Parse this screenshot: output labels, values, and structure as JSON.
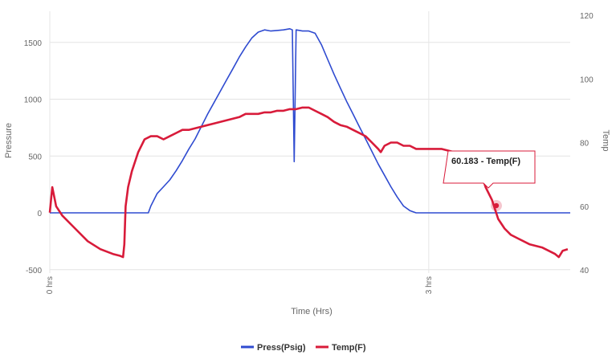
{
  "chart_data": {
    "type": "line",
    "xlabel": "Time (Hrs)",
    "ylabel_left": "Pressure",
    "ylabel_right": "Temp",
    "x_tick_labels": [
      "0 hrs",
      "3 hrs"
    ],
    "y_left": {
      "min": -500,
      "max": 1700,
      "ticks": [
        -500,
        0,
        500,
        1000,
        1500
      ]
    },
    "y_right": {
      "min": 40,
      "max": 122,
      "ticks": [
        40,
        60,
        80,
        100,
        120
      ]
    },
    "grid": true,
    "legend_position": "bottom",
    "colors": {
      "pressure": "#2f4bd0",
      "temperature": "#d81b3a"
    },
    "series": [
      {
        "name": "Press(Psig)",
        "axis": "left",
        "points": [
          [
            0.0,
            0
          ],
          [
            0.1,
            0
          ],
          [
            0.15,
            0
          ],
          [
            0.2,
            0
          ],
          [
            0.25,
            0
          ],
          [
            0.3,
            0
          ],
          [
            0.35,
            0
          ],
          [
            0.4,
            0
          ],
          [
            0.45,
            0
          ],
          [
            0.5,
            0
          ],
          [
            0.55,
            0
          ],
          [
            0.6,
            0
          ],
          [
            0.65,
            0
          ],
          [
            0.7,
            0
          ],
          [
            0.75,
            0
          ],
          [
            0.78,
            0
          ],
          [
            0.8,
            60
          ],
          [
            0.85,
            170
          ],
          [
            0.9,
            230
          ],
          [
            0.95,
            290
          ],
          [
            1.0,
            370
          ],
          [
            1.05,
            460
          ],
          [
            1.1,
            560
          ],
          [
            1.15,
            650
          ],
          [
            1.2,
            760
          ],
          [
            1.25,
            870
          ],
          [
            1.3,
            970
          ],
          [
            1.35,
            1070
          ],
          [
            1.4,
            1170
          ],
          [
            1.45,
            1270
          ],
          [
            1.5,
            1370
          ],
          [
            1.55,
            1460
          ],
          [
            1.6,
            1540
          ],
          [
            1.65,
            1590
          ],
          [
            1.7,
            1610
          ],
          [
            1.75,
            1600
          ],
          [
            1.8,
            1605
          ],
          [
            1.85,
            1610
          ],
          [
            1.9,
            1620
          ],
          [
            1.92,
            1610
          ],
          [
            1.935,
            450
          ],
          [
            1.95,
            1610
          ],
          [
            2.0,
            1600
          ],
          [
            2.05,
            1600
          ],
          [
            2.1,
            1580
          ],
          [
            2.15,
            1480
          ],
          [
            2.2,
            1350
          ],
          [
            2.25,
            1220
          ],
          [
            2.3,
            1100
          ],
          [
            2.35,
            980
          ],
          [
            2.4,
            870
          ],
          [
            2.45,
            760
          ],
          [
            2.5,
            650
          ],
          [
            2.55,
            540
          ],
          [
            2.6,
            430
          ],
          [
            2.65,
            330
          ],
          [
            2.7,
            230
          ],
          [
            2.75,
            140
          ],
          [
            2.8,
            60
          ],
          [
            2.85,
            20
          ],
          [
            2.9,
            0
          ],
          [
            3.0,
            0
          ],
          [
            3.2,
            0
          ],
          [
            3.4,
            0
          ],
          [
            3.6,
            0
          ],
          [
            3.8,
            0
          ],
          [
            4.0,
            0
          ],
          [
            4.12,
            0
          ]
        ]
      },
      {
        "name": "Temp(F)",
        "axis": "right",
        "points": [
          [
            0.0,
            58
          ],
          [
            0.02,
            66
          ],
          [
            0.05,
            60
          ],
          [
            0.1,
            57
          ],
          [
            0.2,
            53
          ],
          [
            0.3,
            49
          ],
          [
            0.4,
            46.5
          ],
          [
            0.5,
            45
          ],
          [
            0.55,
            44.5
          ],
          [
            0.58,
            44
          ],
          [
            0.59,
            48
          ],
          [
            0.6,
            60
          ],
          [
            0.62,
            66
          ],
          [
            0.65,
            71
          ],
          [
            0.7,
            77
          ],
          [
            0.75,
            81
          ],
          [
            0.8,
            82
          ],
          [
            0.85,
            82
          ],
          [
            0.9,
            81
          ],
          [
            0.95,
            82
          ],
          [
            1.0,
            83
          ],
          [
            1.05,
            84
          ],
          [
            1.1,
            84
          ],
          [
            1.2,
            85
          ],
          [
            1.3,
            86
          ],
          [
            1.4,
            87
          ],
          [
            1.5,
            88
          ],
          [
            1.55,
            89
          ],
          [
            1.6,
            89
          ],
          [
            1.65,
            89
          ],
          [
            1.7,
            89.5
          ],
          [
            1.75,
            89.5
          ],
          [
            1.8,
            90
          ],
          [
            1.85,
            90
          ],
          [
            1.9,
            90.5
          ],
          [
            1.95,
            90.5
          ],
          [
            2.0,
            91
          ],
          [
            2.05,
            91
          ],
          [
            2.1,
            90
          ],
          [
            2.15,
            89
          ],
          [
            2.2,
            88
          ],
          [
            2.25,
            86.5
          ],
          [
            2.3,
            85.5
          ],
          [
            2.35,
            85
          ],
          [
            2.4,
            84
          ],
          [
            2.45,
            83
          ],
          [
            2.5,
            82
          ],
          [
            2.55,
            80
          ],
          [
            2.6,
            78
          ],
          [
            2.62,
            77
          ],
          [
            2.65,
            79
          ],
          [
            2.7,
            80
          ],
          [
            2.75,
            80
          ],
          [
            2.8,
            79
          ],
          [
            2.85,
            79
          ],
          [
            2.9,
            78
          ],
          [
            3.0,
            78
          ],
          [
            3.1,
            78
          ],
          [
            3.2,
            77
          ],
          [
            3.3,
            77
          ],
          [
            3.35,
            76
          ],
          [
            3.4,
            72
          ],
          [
            3.45,
            66
          ],
          [
            3.5,
            62
          ],
          [
            3.55,
            56
          ],
          [
            3.6,
            53
          ],
          [
            3.65,
            51
          ],
          [
            3.7,
            50
          ],
          [
            3.8,
            48
          ],
          [
            3.9,
            47
          ],
          [
            4.0,
            45
          ],
          [
            4.03,
            44
          ],
          [
            4.06,
            46
          ],
          [
            4.1,
            46.5
          ]
        ]
      }
    ],
    "tooltip": {
      "x": 3.535,
      "y": 60.183,
      "text": "60.183 - Temp(F)"
    }
  }
}
